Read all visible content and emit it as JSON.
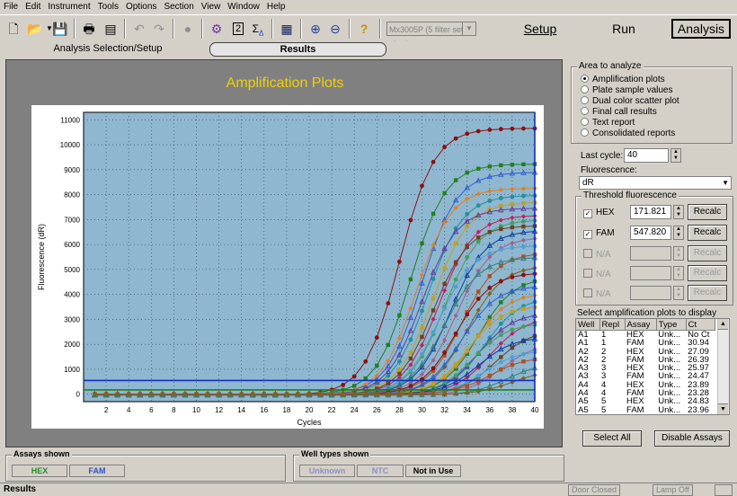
{
  "menu": [
    "File",
    "Edit",
    "Instrument",
    "Tools",
    "Options",
    "Section",
    "View",
    "Window",
    "Help"
  ],
  "toolbar": {
    "instrument": "Mx3005P (5 filter set plate)",
    "setup_label": "Setup",
    "run_label": "Run",
    "analysis_label": "Analysis"
  },
  "nav": {
    "setup_tab": "Analysis Selection/Setup",
    "results_tab": "Results"
  },
  "plot": {
    "title": "Amplification Plots"
  },
  "chart_data": {
    "type": "line",
    "title": "Amplification Plots",
    "xlabel": "Cycles",
    "ylabel": "Fluorescence (dR)",
    "xlim": [
      0,
      40
    ],
    "ylim": [
      -300,
      11300
    ],
    "xticks": [
      2,
      4,
      6,
      8,
      10,
      12,
      14,
      16,
      18,
      20,
      22,
      24,
      26,
      28,
      30,
      32,
      34,
      36,
      38,
      40
    ],
    "yticks": [
      0,
      1000,
      2000,
      3000,
      4000,
      5000,
      6000,
      7000,
      8000,
      9000,
      10000,
      11000
    ],
    "grid": true,
    "background": "#8fb7cf",
    "thresholds": [
      171.821,
      547.82
    ],
    "series_plateaus": [
      10700,
      9250,
      8900,
      8300,
      8000,
      7700,
      7500,
      7200,
      7000,
      6800,
      6600,
      6300,
      6000,
      5700,
      5500,
      5200,
      4900,
      4700,
      4400,
      4100,
      3900,
      3600,
      3300,
      3100,
      2900,
      2600,
      2300,
      2100,
      1800,
      1500,
      1300,
      1000
    ],
    "series_midpoints": [
      28,
      29,
      30,
      29.5,
      30.5,
      31,
      30,
      31.5,
      32,
      31,
      32.5,
      33,
      31.5,
      33.5,
      32,
      34,
      33,
      35,
      33.5,
      34.5,
      35.5,
      34,
      35,
      36,
      34.5,
      36.5,
      35,
      37,
      35.5,
      36,
      37.5,
      38
    ]
  },
  "right": {
    "area_title": "Area to analyze",
    "area_options": [
      "Amplification plots",
      "Plate sample values",
      "Dual color scatter plot",
      "Final call results",
      "Text report",
      "Consolidated reports"
    ],
    "last_cycle_label": "Last cycle:",
    "last_cycle_value": "40",
    "fluorescence_label": "Fluorescence:",
    "fluorescence_value": "dR",
    "threshold_title": "Threshold fluorescence",
    "thresholds": [
      {
        "label": "HEX",
        "value": "171.821",
        "checked": true
      },
      {
        "label": "FAM",
        "value": "547.820",
        "checked": true
      },
      {
        "label": "N/A",
        "value": "",
        "checked": false
      },
      {
        "label": "N/A",
        "value": "",
        "checked": false
      },
      {
        "label": "N/A",
        "value": "",
        "checked": false
      }
    ],
    "recalc_label": "Recalc",
    "select_plots_label": "Select amplification plots to display",
    "table_headers": [
      "Well",
      "Repl",
      "Assay",
      "Type",
      "Ct"
    ],
    "table_rows": [
      [
        "A1",
        "1",
        "HEX",
        "Unk...",
        "No Ct"
      ],
      [
        "A1",
        "1",
        "FAM",
        "Unk...",
        "30.94"
      ],
      [
        "A2",
        "2",
        "HEX",
        "Unk...",
        "27.09"
      ],
      [
        "A2",
        "2",
        "FAM",
        "Unk...",
        "26.39"
      ],
      [
        "A3",
        "3",
        "HEX",
        "Unk...",
        "25.97"
      ],
      [
        "A3",
        "3",
        "FAM",
        "Unk...",
        "24.47"
      ],
      [
        "A4",
        "4",
        "HEX",
        "Unk...",
        "23.89"
      ],
      [
        "A4",
        "4",
        "FAM",
        "Unk...",
        "23.28"
      ],
      [
        "A5",
        "5",
        "HEX",
        "Unk...",
        "24.83"
      ],
      [
        "A5",
        "5",
        "FAM",
        "Unk...",
        "23.96"
      ]
    ],
    "select_all_label": "Select All",
    "disable_assays_label": "Disable Assays"
  },
  "bottom": {
    "assays_title": "Assays shown",
    "assays": [
      "HEX",
      "FAM"
    ],
    "welltypes_title": "Well types shown",
    "welltypes": [
      "Unknown",
      "NTC",
      "Not in Use"
    ]
  },
  "status": {
    "left": "Results",
    "door": "Door Closed",
    "lamp": "Lamp Off"
  }
}
